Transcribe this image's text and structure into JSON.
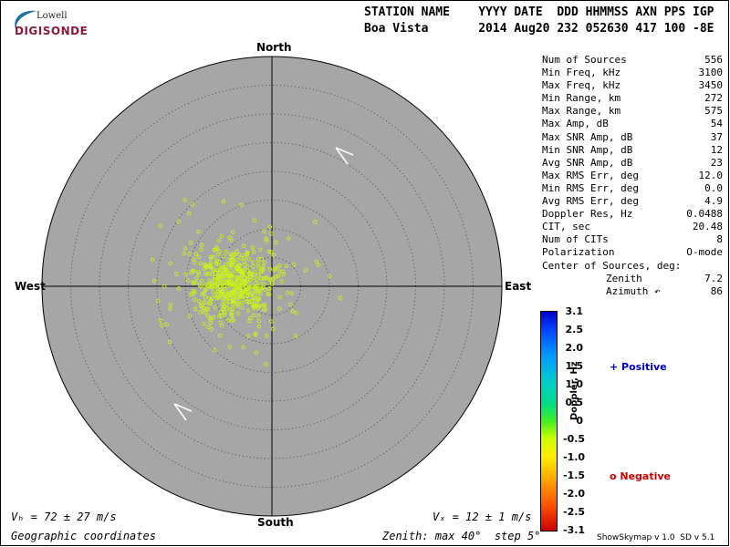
{
  "logo": {
    "top": "Lowell",
    "bottom": "DIGISONDE"
  },
  "header": {
    "line1": "STATION NAME    YYYY DATE  DDD HHMMSS AXN PPS IGP",
    "line2": "Boa Vista       2014 Aug20 232 052630 417 100 -8E"
  },
  "directions": {
    "north": "North",
    "south": "South",
    "east": "East",
    "west": "West"
  },
  "stats": [
    {
      "label": "Num of Sources",
      "value": "556"
    },
    {
      "label": "Min Freq, kHz",
      "value": "3100"
    },
    {
      "label": "Max Freq, kHz",
      "value": "3450"
    },
    {
      "label": "Min Range, km",
      "value": "272"
    },
    {
      "label": "Max Range, km",
      "value": "575"
    },
    {
      "label": "Max Amp, dB",
      "value": "54"
    },
    {
      "label": "Max SNR Amp, dB",
      "value": "37"
    },
    {
      "label": "Min SNR Amp, dB",
      "value": "12"
    },
    {
      "label": "Avg SNR Amp, dB",
      "value": "23"
    },
    {
      "label": "Max RMS Err, deg",
      "value": "12.0"
    },
    {
      "label": "Min RMS Err, deg",
      "value": "0.0"
    },
    {
      "label": "Avg RMS Err, deg",
      "value": "4.9"
    },
    {
      "label": "Doppler Res, Hz",
      "value": "0.0488"
    },
    {
      "label": "CIT, sec",
      "value": "20.48"
    },
    {
      "label": "Num of CITs",
      "value": "8"
    },
    {
      "label": "Polarization",
      "value": "O-mode"
    }
  ],
  "center": {
    "heading": "Center of Sources, deg:",
    "zenith_label": "Zenith",
    "zenith_value": "7.2",
    "azimuth_label": "Azimuth ↶",
    "azimuth_value": "86"
  },
  "colorbar": {
    "title": "Doppler, Hz",
    "ticks": [
      "3.1",
      "2.5",
      "2.0",
      "1.5",
      "1.0",
      "0.5",
      "0",
      "-0.5",
      "-1.0",
      "-1.5",
      "-2.0",
      "-2.5",
      "-3.1"
    ],
    "positive_label": "+ Positive",
    "negative_label": "o Negative",
    "positive_color": "#0000cc",
    "negative_color": "#cc0000"
  },
  "footer": {
    "vh": "Vₕ = 72 ± 27 m/s",
    "vz": "Vₓ = 12 ± 1 m/s",
    "coords": "Geographic coordinates",
    "zenith": "Zenith: max 40°  step 5°",
    "version": "ShowSkymap v 1.0  SD v 5.1"
  },
  "chart_data": {
    "type": "scatter",
    "coordinate_system": "polar sky map (zenith / azimuth)",
    "zenith_max_deg": 40,
    "zenith_step_deg": 5,
    "num_sources": 556,
    "center_zenith_deg": 7.2,
    "center_azimuth_deg": 86,
    "point_color": "#c8f020",
    "disk_color": "#a6a6a6"
  }
}
